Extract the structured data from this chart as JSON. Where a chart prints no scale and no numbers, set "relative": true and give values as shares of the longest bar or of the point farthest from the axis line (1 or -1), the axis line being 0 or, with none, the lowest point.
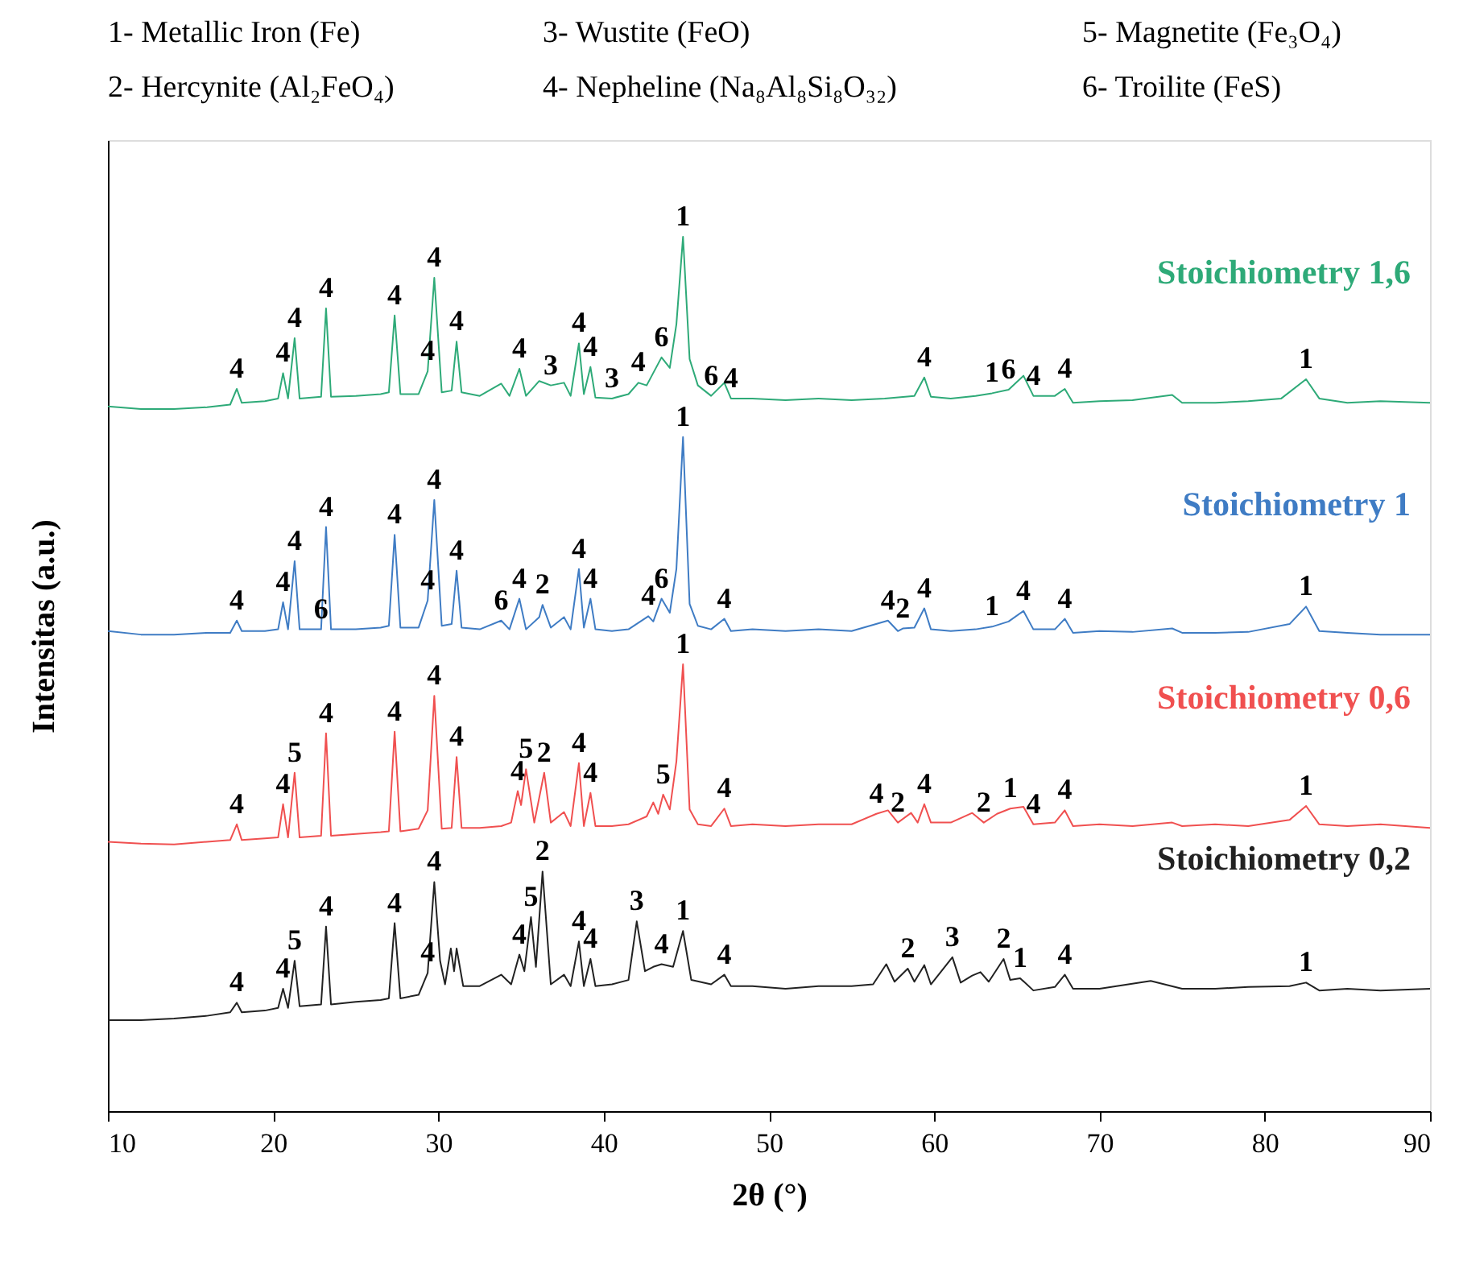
{
  "chart_data": {
    "type": "line",
    "relative": true,
    "xlabel": "2θ (°)",
    "ylabel": "Intensitas (a.u.)",
    "xlim": [
      10,
      90
    ],
    "xticks": [
      10,
      20,
      30,
      40,
      50,
      60,
      70,
      80,
      90
    ],
    "grid": false,
    "series": [
      {
        "name": "Stoichiometry 1,6",
        "color": "#2eaa78",
        "x": [
          10,
          12,
          14,
          16,
          17.4,
          17.8,
          18.1,
          19.5,
          20.3,
          20.6,
          20.9,
          21.3,
          21.6,
          22.9,
          23.2,
          23.5,
          25,
          26.5,
          27,
          27.35,
          27.7,
          28.8,
          29.35,
          29.75,
          30.2,
          30.8,
          31.1,
          31.4,
          32.5,
          33.8,
          34.3,
          34.9,
          35.3,
          36.1,
          36.8,
          37.6,
          38,
          38.5,
          38.8,
          39.2,
          39.5,
          40.5,
          41.5,
          42.1,
          42.6,
          43.5,
          44,
          44.4,
          44.8,
          45.2,
          45.7,
          46.5,
          47.3,
          47.7,
          49,
          51,
          53,
          55,
          57,
          58.8,
          59.4,
          59.8,
          61,
          62.5,
          63.5,
          64.5,
          65.4,
          66,
          67.3,
          67.9,
          68.4,
          70,
          72,
          74.4,
          75,
          77,
          79,
          81,
          82.5,
          83.3,
          85,
          87,
          90
        ],
        "values": [
          0.806,
          0.803,
          0.803,
          0.805,
          0.808,
          0.826,
          0.81,
          0.812,
          0.815,
          0.844,
          0.815,
          0.884,
          0.815,
          0.817,
          0.918,
          0.817,
          0.818,
          0.82,
          0.822,
          0.91,
          0.82,
          0.82,
          0.846,
          0.953,
          0.822,
          0.824,
          0.88,
          0.822,
          0.818,
          0.832,
          0.818,
          0.849,
          0.818,
          0.835,
          0.83,
          0.833,
          0.818,
          0.878,
          0.82,
          0.851,
          0.816,
          0.815,
          0.82,
          0.833,
          0.83,
          0.862,
          0.85,
          0.9,
          1,
          0.86,
          0.83,
          0.818,
          0.833,
          0.815,
          0.815,
          0.813,
          0.815,
          0.813,
          0.815,
          0.818,
          0.839,
          0.817,
          0.815,
          0.818,
          0.821,
          0.825,
          0.841,
          0.818,
          0.818,
          0.826,
          0.81,
          0.812,
          0.813,
          0.819,
          0.81,
          0.81,
          0.812,
          0.815,
          0.837,
          0.815,
          0.81,
          0.812,
          0.81
        ]
      },
      {
        "name": "Stoichiometry 1",
        "color": "#3f7cc4",
        "x": [
          10,
          12,
          14,
          16,
          17.4,
          17.8,
          18.1,
          19.5,
          20.3,
          20.6,
          20.9,
          21.3,
          21.6,
          22.9,
          23.2,
          23.5,
          25,
          26.5,
          27,
          27.35,
          27.7,
          28.8,
          29.35,
          29.75,
          30.2,
          30.8,
          31.1,
          31.4,
          32.5,
          33.8,
          34.3,
          34.9,
          35.3,
          36.1,
          36.3,
          36.8,
          37.6,
          38,
          38.5,
          38.8,
          39.2,
          39.5,
          40.5,
          41.5,
          42.7,
          43,
          43.5,
          44,
          44.4,
          44.8,
          45.2,
          45.7,
          46.5,
          47.3,
          47.7,
          49,
          51,
          53,
          55,
          57.2,
          57.8,
          58.1,
          58.8,
          59.4,
          59.8,
          61,
          62.5,
          63.5,
          64.5,
          65.4,
          66,
          67.3,
          67.9,
          68.4,
          70,
          72,
          74.4,
          75,
          77,
          79,
          81.5,
          82.5,
          83.3,
          85,
          87,
          90
        ],
        "values": [
          0.549,
          0.545,
          0.545,
          0.547,
          0.547,
          0.561,
          0.549,
          0.549,
          0.551,
          0.582,
          0.551,
          0.629,
          0.551,
          0.551,
          0.668,
          0.551,
          0.551,
          0.553,
          0.555,
          0.659,
          0.553,
          0.553,
          0.584,
          0.699,
          0.555,
          0.557,
          0.618,
          0.553,
          0.551,
          0.561,
          0.551,
          0.586,
          0.551,
          0.565,
          0.579,
          0.553,
          0.565,
          0.551,
          0.62,
          0.553,
          0.586,
          0.551,
          0.549,
          0.551,
          0.566,
          0.56,
          0.586,
          0.57,
          0.62,
          0.771,
          0.58,
          0.555,
          0.551,
          0.563,
          0.549,
          0.551,
          0.549,
          0.551,
          0.549,
          0.561,
          0.549,
          0.552,
          0.553,
          0.575,
          0.551,
          0.549,
          0.551,
          0.554,
          0.56,
          0.572,
          0.551,
          0.551,
          0.563,
          0.547,
          0.549,
          0.548,
          0.552,
          0.547,
          0.547,
          0.548,
          0.557,
          0.577,
          0.549,
          0.547,
          0.545,
          0.545
        ]
      },
      {
        "name": "Stoichiometry 0,6",
        "color": "#f05050",
        "x": [
          10,
          12,
          14,
          16,
          17.4,
          17.8,
          18.1,
          19.5,
          20.3,
          20.6,
          20.9,
          21.3,
          21.6,
          22.9,
          23.2,
          23.5,
          25,
          26.5,
          27,
          27.35,
          27.7,
          28.8,
          29.35,
          29.75,
          30.2,
          30.8,
          31.1,
          31.4,
          32.5,
          33.8,
          34.4,
          34.8,
          35.0,
          35.3,
          35.8,
          36.4,
          36.8,
          37.6,
          38,
          38.5,
          38.8,
          39.2,
          39.5,
          40.5,
          41.5,
          42.6,
          43.0,
          43.3,
          43.6,
          44,
          44.4,
          44.8,
          45.2,
          45.7,
          46.5,
          47.3,
          47.7,
          49,
          51,
          53,
          55,
          56.5,
          57.2,
          57.8,
          58.6,
          59,
          59.4,
          59.8,
          61,
          62.3,
          63,
          63.8,
          64.6,
          65.4,
          66,
          67.3,
          67.9,
          68.4,
          70,
          72,
          74.4,
          75,
          77,
          79,
          81.5,
          82.5,
          83.3,
          85,
          87,
          90
        ],
        "values": [
          0.308,
          0.306,
          0.305,
          0.308,
          0.31,
          0.328,
          0.31,
          0.312,
          0.313,
          0.351,
          0.313,
          0.387,
          0.313,
          0.315,
          0.432,
          0.315,
          0.317,
          0.319,
          0.32,
          0.434,
          0.32,
          0.323,
          0.344,
          0.475,
          0.323,
          0.324,
          0.405,
          0.324,
          0.324,
          0.326,
          0.33,
          0.366,
          0.35,
          0.391,
          0.33,
          0.387,
          0.33,
          0.342,
          0.326,
          0.398,
          0.326,
          0.364,
          0.326,
          0.326,
          0.328,
          0.337,
          0.353,
          0.34,
          0.362,
          0.345,
          0.4,
          0.511,
          0.345,
          0.328,
          0.326,
          0.346,
          0.326,
          0.328,
          0.326,
          0.328,
          0.328,
          0.34,
          0.344,
          0.33,
          0.341,
          0.33,
          0.351,
          0.33,
          0.33,
          0.341,
          0.33,
          0.34,
          0.346,
          0.348,
          0.328,
          0.33,
          0.344,
          0.326,
          0.328,
          0.326,
          0.33,
          0.326,
          0.328,
          0.326,
          0.333,
          0.349,
          0.328,
          0.326,
          0.328,
          0.324
        ]
      },
      {
        "name": "Stoichiometry 0,2",
        "color": "#222222",
        "x": [
          10,
          12,
          14,
          16,
          17.4,
          17.8,
          18.1,
          19.5,
          20.3,
          20.6,
          20.9,
          21.3,
          21.6,
          22.9,
          23.2,
          23.5,
          25,
          26.5,
          27,
          27.35,
          27.7,
          28.8,
          29.35,
          29.75,
          30.1,
          30.4,
          30.75,
          30.95,
          31.1,
          31.5,
          32.5,
          33.8,
          34.4,
          34.9,
          35.2,
          35.6,
          35.9,
          36.3,
          36.8,
          37.6,
          38,
          38.5,
          38.8,
          39.2,
          39.5,
          40.5,
          41.5,
          42.0,
          42.5,
          43.0,
          43.5,
          44.2,
          44.8,
          45.3,
          46.5,
          47.3,
          47.7,
          49,
          51,
          53,
          55,
          56.3,
          57.1,
          57.6,
          58.4,
          58.8,
          59.4,
          59.8,
          61.1,
          61.6,
          62.3,
          62.8,
          63.3,
          64.2,
          64.6,
          65.2,
          66,
          67.3,
          67.9,
          68.4,
          70,
          73.1,
          75,
          77,
          79,
          81.5,
          82.5,
          83.3,
          85,
          87,
          90
        ],
        "values": [
          0.104,
          0.104,
          0.106,
          0.109,
          0.113,
          0.124,
          0.113,
          0.115,
          0.118,
          0.14,
          0.118,
          0.172,
          0.12,
          0.122,
          0.211,
          0.122,
          0.125,
          0.127,
          0.129,
          0.215,
          0.129,
          0.133,
          0.158,
          0.262,
          0.172,
          0.145,
          0.186,
          0.16,
          0.186,
          0.143,
          0.143,
          0.156,
          0.145,
          0.179,
          0.16,
          0.222,
          0.165,
          0.274,
          0.145,
          0.156,
          0.143,
          0.194,
          0.143,
          0.174,
          0.143,
          0.145,
          0.15,
          0.217,
          0.16,
          0.165,
          0.168,
          0.165,
          0.206,
          0.15,
          0.145,
          0.156,
          0.143,
          0.143,
          0.14,
          0.143,
          0.143,
          0.145,
          0.168,
          0.148,
          0.163,
          0.148,
          0.167,
          0.145,
          0.176,
          0.147,
          0.155,
          0.159,
          0.148,
          0.174,
          0.15,
          0.152,
          0.138,
          0.142,
          0.156,
          0.14,
          0.14,
          0.149,
          0.14,
          0.14,
          0.142,
          0.143,
          0.147,
          0.138,
          0.14,
          0.138,
          0.14
        ]
      }
    ],
    "annotations": [
      "1- Metallic Iron (Fe)",
      "2- Hercynite (Al₂FeO₄)",
      "3- Wustite (FeO)",
      "4- Nepheline (Na₈Al₈Si₈O₃₂)",
      "5- Magnetite (Fe₃O₄)",
      "6- Troilite (FeS)",
      {
        "text": "4",
        "x": 17.8,
        "y": 0.826
      },
      {
        "text": "4",
        "x": 20.6,
        "y": 0.844
      },
      {
        "text": "4",
        "x": 21.3,
        "y": 0.884
      },
      {
        "text": "4",
        "x": 23.2,
        "y": 0.918
      },
      {
        "text": "4",
        "x": 27.35,
        "y": 0.91
      },
      {
        "text": "4",
        "x": 29.35,
        "y": 0.846
      },
      {
        "text": "4",
        "x": 29.75,
        "y": 0.953
      },
      {
        "text": "4",
        "x": 31.1,
        "y": 0.88
      },
      {
        "text": "4",
        "x": 34.9,
        "y": 0.849
      },
      {
        "text": "3",
        "x": 36.8,
        "y": 0.83
      },
      {
        "text": "4",
        "x": 38.5,
        "y": 0.878
      },
      {
        "text": "4",
        "x": 39.2,
        "y": 0.851
      },
      {
        "text": "3",
        "x": 40.5,
        "y": 0.815
      },
      {
        "text": "4",
        "x": 42.1,
        "y": 0.833
      },
      {
        "text": "6",
        "x": 43.5,
        "y": 0.862
      },
      {
        "text": "1",
        "x": 44.8,
        "y": 1
      },
      {
        "text": "6",
        "x": 46.5,
        "y": 0.818
      },
      {
        "text": "4",
        "x": 47.7,
        "y": 0.815
      },
      {
        "text": "4",
        "x": 59.4,
        "y": 0.839
      },
      {
        "text": "1",
        "x": 63.5,
        "y": 0.821
      },
      {
        "text": "6",
        "x": 64.5,
        "y": 0.825
      },
      {
        "text": "4",
        "x": 66,
        "y": 0.818
      },
      {
        "text": "4",
        "x": 67.9,
        "y": 0.826
      },
      {
        "text": "1",
        "x": 82.5,
        "y": 0.837
      },
      {
        "text": "4",
        "x": 17.8,
        "y": 0.561
      },
      {
        "text": "4",
        "x": 20.6,
        "y": 0.582
      },
      {
        "text": "4",
        "x": 21.3,
        "y": 0.629
      },
      {
        "text": "6",
        "x": 22.9,
        "y": 0.551
      },
      {
        "text": "4",
        "x": 23.2,
        "y": 0.668
      },
      {
        "text": "4",
        "x": 27.35,
        "y": 0.659
      },
      {
        "text": "4",
        "x": 29.35,
        "y": 0.584
      },
      {
        "text": "4",
        "x": 29.75,
        "y": 0.699
      },
      {
        "text": "4",
        "x": 31.1,
        "y": 0.618
      },
      {
        "text": "6",
        "x": 33.8,
        "y": 0.561
      },
      {
        "text": "4",
        "x": 34.9,
        "y": 0.586
      },
      {
        "text": "2",
        "x": 36.3,
        "y": 0.579
      },
      {
        "text": "4",
        "x": 38.5,
        "y": 0.62
      },
      {
        "text": "4",
        "x": 39.2,
        "y": 0.586
      },
      {
        "text": "4",
        "x": 42.7,
        "y": 0.566
      },
      {
        "text": "6",
        "x": 43.5,
        "y": 0.586
      },
      {
        "text": "1",
        "x": 44.8,
        "y": 0.771
      },
      {
        "text": "4",
        "x": 47.3,
        "y": 0.563
      },
      {
        "text": "4",
        "x": 57.2,
        "y": 0.561
      },
      {
        "text": "2",
        "x": 58.1,
        "y": 0.552
      },
      {
        "text": "4",
        "x": 59.4,
        "y": 0.575
      },
      {
        "text": "1",
        "x": 63.5,
        "y": 0.554
      },
      {
        "text": "4",
        "x": 65.4,
        "y": 0.572
      },
      {
        "text": "4",
        "x": 67.9,
        "y": 0.563
      },
      {
        "text": "1",
        "x": 82.5,
        "y": 0.577
      },
      {
        "text": "4",
        "x": 17.8,
        "y": 0.328
      },
      {
        "text": "4",
        "x": 20.6,
        "y": 0.351
      },
      {
        "text": "5",
        "x": 21.3,
        "y": 0.387
      },
      {
        "text": "4",
        "x": 23.2,
        "y": 0.432
      },
      {
        "text": "4",
        "x": 27.35,
        "y": 0.434
      },
      {
        "text": "4",
        "x": 29.75,
        "y": 0.475
      },
      {
        "text": "4",
        "x": 31.1,
        "y": 0.405
      },
      {
        "text": "4",
        "x": 34.8,
        "y": 0.366
      },
      {
        "text": "5",
        "x": 35.3,
        "y": 0.391
      },
      {
        "text": "2",
        "x": 36.4,
        "y": 0.387
      },
      {
        "text": "4",
        "x": 38.5,
        "y": 0.398
      },
      {
        "text": "4",
        "x": 39.2,
        "y": 0.364
      },
      {
        "text": "5",
        "x": 43.6,
        "y": 0.362
      },
      {
        "text": "1",
        "x": 44.8,
        "y": 0.511
      },
      {
        "text": "4",
        "x": 47.3,
        "y": 0.346
      },
      {
        "text": "4",
        "x": 56.5,
        "y": 0.34
      },
      {
        "text": "2",
        "x": 57.8,
        "y": 0.33
      },
      {
        "text": "4",
        "x": 59.4,
        "y": 0.351
      },
      {
        "text": "2",
        "x": 63,
        "y": 0.33
      },
      {
        "text": "1",
        "x": 64.6,
        "y": 0.346
      },
      {
        "text": "4",
        "x": 66,
        "y": 0.328
      },
      {
        "text": "4",
        "x": 67.9,
        "y": 0.344
      },
      {
        "text": "1",
        "x": 82.5,
        "y": 0.349
      },
      {
        "text": "4",
        "x": 17.8,
        "y": 0.124
      },
      {
        "text": "4",
        "x": 20.6,
        "y": 0.14
      },
      {
        "text": "5",
        "x": 21.3,
        "y": 0.172
      },
      {
        "text": "4",
        "x": 23.2,
        "y": 0.211
      },
      {
        "text": "4",
        "x": 27.35,
        "y": 0.215
      },
      {
        "text": "4",
        "x": 29.35,
        "y": 0.158
      },
      {
        "text": "4",
        "x": 29.75,
        "y": 0.262
      },
      {
        "text": "4",
        "x": 34.9,
        "y": 0.179
      },
      {
        "text": "5",
        "x": 35.6,
        "y": 0.222
      },
      {
        "text": "2",
        "x": 36.3,
        "y": 0.274
      },
      {
        "text": "4",
        "x": 38.5,
        "y": 0.194
      },
      {
        "text": "4",
        "x": 39.2,
        "y": 0.174
      },
      {
        "text": "3",
        "x": 42.0,
        "y": 0.217
      },
      {
        "text": "4",
        "x": 43.5,
        "y": 0.168
      },
      {
        "text": "1",
        "x": 44.8,
        "y": 0.206
      },
      {
        "text": "4",
        "x": 47.3,
        "y": 0.156
      },
      {
        "text": "2",
        "x": 58.4,
        "y": 0.163
      },
      {
        "text": "3",
        "x": 61.1,
        "y": 0.176
      },
      {
        "text": "2",
        "x": 64.2,
        "y": 0.174
      },
      {
        "text": "1",
        "x": 65.2,
        "y": 0.152
      },
      {
        "text": "4",
        "x": 67.9,
        "y": 0.156
      },
      {
        "text": "1",
        "x": 82.5,
        "y": 0.147
      }
    ]
  }
}
